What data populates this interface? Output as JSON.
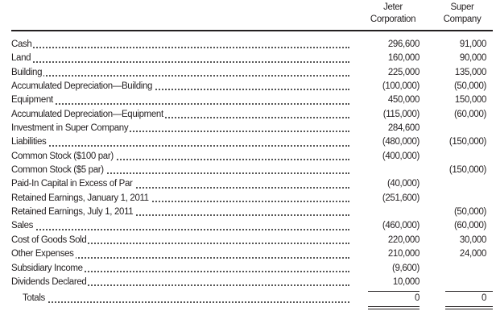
{
  "columns": {
    "jeter": [
      "Jeter",
      "Corporation"
    ],
    "super": [
      "Super",
      "Company"
    ]
  },
  "rows": [
    {
      "label": "Cash",
      "jeter": "296,600",
      "super": "91,000"
    },
    {
      "label": "Land",
      "jeter": "160,000",
      "super": "90,000"
    },
    {
      "label": "Building",
      "jeter": "225,000",
      "super": "135,000"
    },
    {
      "label": "Accumulated Depreciation—Building",
      "jeter": "(100,000)",
      "super": "(50,000)"
    },
    {
      "label": "Equipment",
      "jeter": "450,000",
      "super": "150,000"
    },
    {
      "label": "Accumulated Depreciation—Equipment",
      "jeter": "(115,000)",
      "super": "(60,000)"
    },
    {
      "label": "Investment in Super Company",
      "jeter": "284,600",
      "super": ""
    },
    {
      "label": "Liabilities",
      "jeter": "(480,000)",
      "super": "(150,000)"
    },
    {
      "label": "Common Stock ($100 par)",
      "jeter": "(400,000)",
      "super": ""
    },
    {
      "label": "Common Stock ($5 par)",
      "jeter": "",
      "super": "(150,000)"
    },
    {
      "label": "Paid-In Capital in Excess of Par",
      "jeter": "(40,000)",
      "super": ""
    },
    {
      "label": "Retained Earnings, January 1, 2011",
      "jeter": "(251,600)",
      "super": ""
    },
    {
      "label": "Retained Earnings, July 1, 2011",
      "jeter": "",
      "super": "(50,000)"
    },
    {
      "label": "Sales",
      "jeter": "(460,000)",
      "super": "(60,000)"
    },
    {
      "label": "Cost of Goods Sold",
      "jeter": "220,000",
      "super": "30,000"
    },
    {
      "label": "Other Expenses",
      "jeter": "210,000",
      "super": "24,000"
    },
    {
      "label": "Subsidiary Income",
      "jeter": "(9,600)",
      "super": ""
    },
    {
      "label": "Dividends Declared",
      "jeter": "10,000",
      "super": ""
    }
  ],
  "totals": {
    "label": "Totals",
    "jeter": "0",
    "super": "0"
  }
}
